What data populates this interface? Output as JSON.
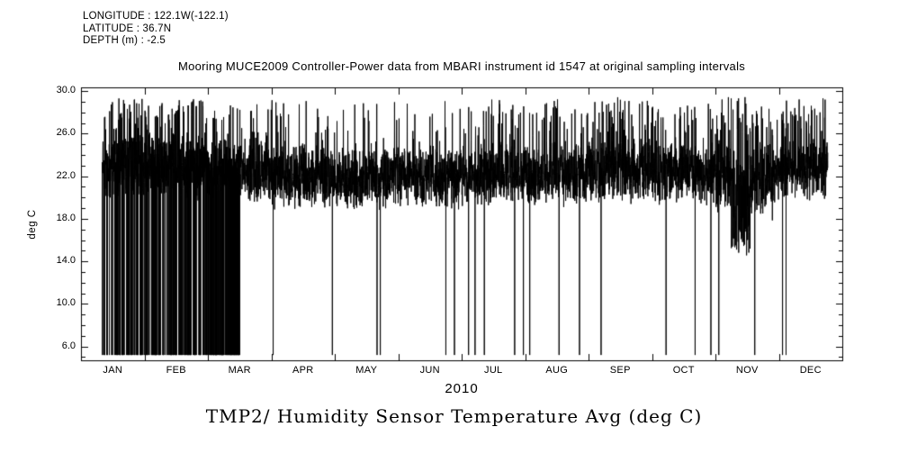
{
  "meta": {
    "longitude": "LONGITUDE : 122.1W(-122.1)",
    "latitude": "LATITUDE : 36.7N",
    "depth": "DEPTH (m) : -2.5"
  },
  "caption": "TMP2/ Humidity Sensor Temperature Avg (deg C)",
  "colors": {
    "ink": "#000000",
    "background": "#ffffff"
  },
  "chart_data": {
    "type": "line",
    "title": "Mooring MUCE2009 Controller-Power data from MBARI instrument id 1547 at original sampling intervals",
    "xlabel": "2010",
    "ylabel": "deg C",
    "ylim": [
      4.7,
      30.35
    ],
    "yticks": [
      30.0,
      26.0,
      22.0,
      18.0,
      14.0,
      10.0,
      6.0
    ],
    "ytick_labels": [
      "30.0",
      "26.0",
      "22.0",
      "18.0",
      "14.0",
      "10.0",
      "6.0"
    ],
    "categories": [
      "JAN",
      "FEB",
      "MAR",
      "APR",
      "MAY",
      "JUN",
      "JUL",
      "AUG",
      "SEP",
      "OCT",
      "NOV",
      "DEC"
    ],
    "grid": false,
    "legend": "none",
    "series": [
      {
        "name": "TMP2/ Humidity Sensor Temperature Avg",
        "units": "deg C",
        "style": "dense 1px black trace at original sampling intervals with dropout spikes to near 5 deg C",
        "seed": 20100147,
        "samples_per_month": 450,
        "data_start_frac": 0.028,
        "data_end_frac": 0.981,
        "dropout_floor": 5.2,
        "months": [
          {
            "month": "JAN",
            "band": [
              19.5,
              26.3
            ],
            "spike_hi": 29.4,
            "spike_p": 0.1,
            "drop_p": 0.18,
            "drop_window": [
              0.0,
              1.0
            ]
          },
          {
            "month": "FEB",
            "band": [
              19.5,
              26.3
            ],
            "spike_hi": 29.4,
            "spike_p": 0.09,
            "drop_p": 0.22,
            "drop_window": [
              0.0,
              1.0
            ]
          },
          {
            "month": "MAR",
            "band": [
              19.3,
              25.8
            ],
            "spike_hi": 29.0,
            "spike_p": 0.06,
            "drop_p": 0.45,
            "drop_window": [
              0.0,
              0.5
            ]
          },
          {
            "month": "APR",
            "band": [
              18.8,
              25.3
            ],
            "spike_hi": 29.2,
            "spike_p": 0.05,
            "drop_p": 0.008,
            "drop_window": [
              0.0,
              1.0
            ]
          },
          {
            "month": "MAY",
            "band": [
              18.6,
              25.0
            ],
            "spike_hi": 29.0,
            "spike_p": 0.05,
            "drop_p": 0.006,
            "drop_window": [
              0.0,
              1.0
            ]
          },
          {
            "month": "JUN",
            "band": [
              18.8,
              25.2
            ],
            "spike_hi": 29.3,
            "spike_p": 0.06,
            "drop_p": 0.01,
            "drop_window": [
              0.0,
              1.0
            ]
          },
          {
            "month": "JUL",
            "band": [
              19.0,
              25.3
            ],
            "spike_hi": 29.2,
            "spike_p": 0.06,
            "drop_p": 0.008,
            "drop_window": [
              0.0,
              1.0
            ]
          },
          {
            "month": "AUG",
            "band": [
              19.0,
              25.5
            ],
            "spike_hi": 29.3,
            "spike_p": 0.07,
            "drop_p": 0.005,
            "drop_window": [
              0.0,
              1.0
            ]
          },
          {
            "month": "SEP",
            "band": [
              19.2,
              26.0
            ],
            "spike_hi": 29.5,
            "spike_p": 0.1,
            "drop_p": 0.008,
            "drop_window": [
              0.0,
              1.0
            ]
          },
          {
            "month": "OCT",
            "band": [
              19.0,
              25.5
            ],
            "spike_hi": 29.0,
            "spike_p": 0.06,
            "drop_p": 0.005,
            "drop_window": [
              0.0,
              1.0
            ]
          },
          {
            "month": "NOV",
            "band": [
              17.8,
              25.8
            ],
            "spike_hi": 29.5,
            "spike_p": 0.09,
            "drop_p": 0.006,
            "drop_window": [
              0.0,
              1.0
            ],
            "dip": {
              "window": [
                0.25,
                0.55
              ],
              "lo": 14.4,
              "hi": 19.0,
              "p": 0.5
            }
          },
          {
            "month": "DEC",
            "band": [
              19.5,
              26.0
            ],
            "spike_hi": 29.4,
            "spike_p": 0.08,
            "drop_p": 0.003,
            "drop_window": [
              0.0,
              0.9
            ]
          }
        ]
      }
    ]
  }
}
